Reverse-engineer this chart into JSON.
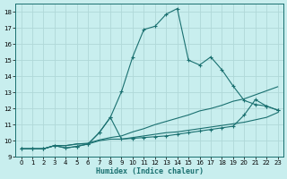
{
  "xlabel": "Humidex (Indice chaleur)",
  "bg_color": "#c8eeee",
  "grid_color": "#b0d8d8",
  "line_color": "#1a7070",
  "xlim": [
    -0.5,
    23.5
  ],
  "ylim": [
    9,
    18.5
  ],
  "yticks": [
    9,
    10,
    11,
    12,
    13,
    14,
    15,
    16,
    17,
    18
  ],
  "xticks": [
    0,
    1,
    2,
    3,
    4,
    5,
    6,
    7,
    8,
    9,
    10,
    11,
    12,
    13,
    14,
    15,
    16,
    17,
    18,
    19,
    20,
    21,
    22,
    23
  ],
  "series": [
    {
      "x": [
        0,
        1,
        2,
        3,
        4,
        5,
        6,
        7,
        8,
        9,
        10,
        11,
        12,
        13,
        14,
        15,
        16,
        17,
        18,
        19,
        20,
        21,
        22,
        23
      ],
      "y": [
        9.5,
        9.5,
        9.5,
        9.7,
        9.7,
        9.8,
        9.8,
        10.0,
        10.1,
        10.1,
        10.2,
        10.3,
        10.4,
        10.5,
        10.55,
        10.65,
        10.75,
        10.85,
        10.95,
        11.05,
        11.15,
        11.3,
        11.45,
        11.75
      ],
      "marker": false
    },
    {
      "x": [
        0,
        1,
        2,
        3,
        4,
        5,
        6,
        7,
        8,
        9,
        10,
        11,
        12,
        13,
        14,
        15,
        16,
        17,
        18,
        19,
        20,
        21,
        22,
        23
      ],
      "y": [
        9.5,
        9.5,
        9.5,
        9.7,
        9.7,
        9.8,
        9.85,
        10.05,
        10.2,
        10.3,
        10.55,
        10.75,
        11.0,
        11.2,
        11.4,
        11.6,
        11.85,
        12.0,
        12.2,
        12.45,
        12.6,
        12.85,
        13.1,
        13.35
      ],
      "marker": false
    },
    {
      "x": [
        0,
        1,
        2,
        3,
        4,
        5,
        6,
        7,
        8,
        9,
        10,
        11,
        12,
        13,
        14,
        15,
        16,
        17,
        18,
        19,
        20,
        21,
        22,
        23
      ],
      "y": [
        9.5,
        9.5,
        9.5,
        9.7,
        9.55,
        9.65,
        9.8,
        10.5,
        11.45,
        10.1,
        10.15,
        10.2,
        10.25,
        10.3,
        10.4,
        10.5,
        10.6,
        10.7,
        10.8,
        10.9,
        11.6,
        12.55,
        12.15,
        11.9
      ],
      "marker": true
    },
    {
      "x": [
        0,
        1,
        2,
        3,
        4,
        5,
        6,
        7,
        8,
        9,
        10,
        11,
        12,
        13,
        14,
        15,
        16,
        17,
        18,
        19,
        20,
        21,
        22,
        23
      ],
      "y": [
        9.5,
        9.5,
        9.5,
        9.7,
        9.55,
        9.65,
        9.8,
        10.5,
        11.45,
        13.05,
        15.2,
        16.9,
        17.1,
        17.85,
        18.2,
        15.0,
        14.7,
        15.2,
        14.4,
        13.4,
        12.5,
        12.25,
        12.15,
        11.9
      ],
      "marker": true
    }
  ]
}
